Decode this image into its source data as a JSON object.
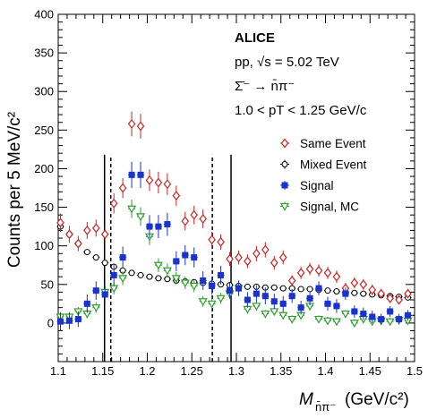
{
  "chart_data": {
    "type": "scatter",
    "xlabel_main": "M",
    "xlabel_sub": "n̄π⁻",
    "xlabel_unit": "(GeV/c²)",
    "ylabel": "Counts per 5 MeV/c²",
    "xlim": [
      1.1,
      1.5
    ],
    "ylim": [
      -50,
      400
    ],
    "x_ticks": [
      "1.1",
      "1.15",
      "1.2",
      "1.25",
      "1.3",
      "1.35",
      "1.4",
      "1.45",
      "1.5"
    ],
    "y_ticks": [
      "0",
      "50",
      "100",
      "150",
      "200",
      "250",
      "300",
      "350",
      "400"
    ],
    "annotations": {
      "experiment": "ALICE",
      "system": "pp, √s = 5.02 TeV",
      "decay": "Σ̄⁻ → n̄π⁻",
      "pt_range": "1.0 < pT < 1.25 GeV/c"
    },
    "vertical_lines": {
      "solid": [
        1.152,
        1.294
      ],
      "dashed": [
        1.159,
        1.273
      ]
    },
    "series": [
      {
        "name": "Same Event",
        "marker": "open-diamond",
        "color": "#cc2222",
        "x": [
          1.1025,
          1.1125,
          1.1225,
          1.1325,
          1.1425,
          1.1525,
          1.1625,
          1.1725,
          1.1825,
          1.1925,
          1.2025,
          1.2125,
          1.2225,
          1.2325,
          1.2425,
          1.2525,
          1.2625,
          1.2725,
          1.2825,
          1.2925,
          1.3025,
          1.3125,
          1.3225,
          1.3325,
          1.3425,
          1.3525,
          1.3625,
          1.3725,
          1.3825,
          1.3925,
          1.4025,
          1.4125,
          1.4225,
          1.4325,
          1.4425,
          1.4525,
          1.4625,
          1.4725,
          1.4825,
          1.4925
        ],
        "y": [
          130,
          115,
          103,
          120,
          123,
          115,
          155,
          175,
          258,
          255,
          185,
          182,
          180,
          165,
          132,
          140,
          135,
          108,
          105,
          83,
          85,
          80,
          90,
          95,
          78,
          85,
          55,
          65,
          70,
          68,
          65,
          60,
          45,
          52,
          50,
          43,
          38,
          32,
          30,
          38
        ],
        "err": [
          12,
          11,
          10,
          11,
          11,
          11,
          13,
          13,
          16,
          16,
          14,
          14,
          14,
          13,
          12,
          12,
          12,
          10,
          10,
          9,
          9,
          9,
          10,
          10,
          9,
          9,
          7,
          8,
          8,
          8,
          8,
          8,
          7,
          7,
          7,
          7,
          6,
          6,
          6,
          6
        ]
      },
      {
        "name": "Mixed Event",
        "marker": "open-circle",
        "color": "#000000",
        "x": [
          1.1025,
          1.1125,
          1.1225,
          1.1325,
          1.1425,
          1.1525,
          1.1625,
          1.1725,
          1.1825,
          1.1925,
          1.2025,
          1.2125,
          1.2225,
          1.2325,
          1.2425,
          1.2525,
          1.2625,
          1.2725,
          1.2825,
          1.2925,
          1.3025,
          1.3125,
          1.3225,
          1.3325,
          1.3425,
          1.3525,
          1.3625,
          1.3725,
          1.3825,
          1.3925,
          1.4025,
          1.4125,
          1.4225,
          1.4325,
          1.4425,
          1.4525,
          1.4625,
          1.4725,
          1.4825,
          1.4925
        ],
        "y": [
          125,
          115,
          103,
          92,
          85,
          78,
          73,
          68,
          65,
          62,
          60,
          58,
          57,
          55,
          54,
          53,
          52,
          51,
          50,
          49,
          48,
          47,
          47,
          46,
          46,
          45,
          45,
          44,
          44,
          43,
          42,
          41,
          40,
          39,
          38,
          37,
          36,
          35,
          34,
          33
        ],
        "err": [
          3,
          3,
          3,
          3,
          3,
          3,
          2,
          2,
          2,
          2,
          2,
          2,
          2,
          2,
          2,
          2,
          2,
          2,
          2,
          2,
          2,
          2,
          2,
          2,
          2,
          2,
          2,
          2,
          2,
          2,
          2,
          2,
          2,
          2,
          2,
          2,
          2,
          2,
          2,
          2
        ]
      },
      {
        "name": "Signal",
        "marker": "filled-square",
        "color": "#1a33cc",
        "x": [
          1.1025,
          1.1125,
          1.1225,
          1.1325,
          1.1425,
          1.1525,
          1.1625,
          1.1725,
          1.1825,
          1.1925,
          1.2025,
          1.2125,
          1.2225,
          1.2325,
          1.2425,
          1.2525,
          1.2625,
          1.2725,
          1.2825,
          1.2925,
          1.3025,
          1.3125,
          1.3225,
          1.3325,
          1.3425,
          1.3525,
          1.3625,
          1.3725,
          1.3825,
          1.3925,
          1.4025,
          1.4125,
          1.4225,
          1.4325,
          1.4425,
          1.4525,
          1.4625,
          1.4725,
          1.4825,
          1.4925
        ],
        "y": [
          2,
          3,
          5,
          25,
          42,
          37,
          62,
          85,
          192,
          192,
          125,
          125,
          128,
          80,
          88,
          85,
          55,
          48,
          62,
          42,
          45,
          30,
          38,
          35,
          28,
          25,
          35,
          20,
          32,
          45,
          25,
          22,
          38,
          15,
          12,
          8,
          5,
          15,
          5,
          10
        ],
        "err": [
          12,
          11,
          10,
          12,
          12,
          12,
          14,
          14,
          17,
          17,
          15,
          15,
          15,
          13,
          13,
          13,
          12,
          11,
          12,
          10,
          10,
          10,
          11,
          11,
          10,
          10,
          9,
          9,
          9,
          9,
          9,
          9,
          8,
          8,
          8,
          8,
          7,
          7,
          7,
          7
        ]
      },
      {
        "name": "Signal, MC",
        "marker": "open-triangle-down",
        "color": "#2e9e2e",
        "x": [
          1.1025,
          1.1125,
          1.1225,
          1.1325,
          1.1425,
          1.1525,
          1.1625,
          1.1725,
          1.1825,
          1.1925,
          1.2025,
          1.2125,
          1.2225,
          1.2325,
          1.2425,
          1.2525,
          1.2625,
          1.2725,
          1.2825,
          1.2925,
          1.3025,
          1.3125,
          1.3225,
          1.3325,
          1.3425,
          1.3525,
          1.3625,
          1.3725,
          1.3825,
          1.3925,
          1.4025,
          1.4125,
          1.4225,
          1.4325,
          1.4425,
          1.4525,
          1.4625,
          1.4725,
          1.4825,
          1.4925
        ],
        "y": [
          8,
          8,
          15,
          12,
          20,
          40,
          45,
          58,
          148,
          138,
          112,
          75,
          68,
          58,
          52,
          48,
          28,
          25,
          32,
          38,
          45,
          18,
          22,
          12,
          15,
          10,
          5,
          10,
          22,
          5,
          3,
          2,
          12,
          0,
          5,
          2,
          3,
          2,
          4,
          3
        ],
        "err": [
          6,
          6,
          6,
          6,
          7,
          8,
          8,
          9,
          12,
          12,
          11,
          9,
          9,
          8,
          8,
          8,
          7,
          6,
          7,
          7,
          7,
          6,
          6,
          5,
          5,
          5,
          5,
          5,
          6,
          5,
          5,
          5,
          5,
          5,
          5,
          5,
          5,
          5,
          5,
          5
        ]
      }
    ]
  }
}
